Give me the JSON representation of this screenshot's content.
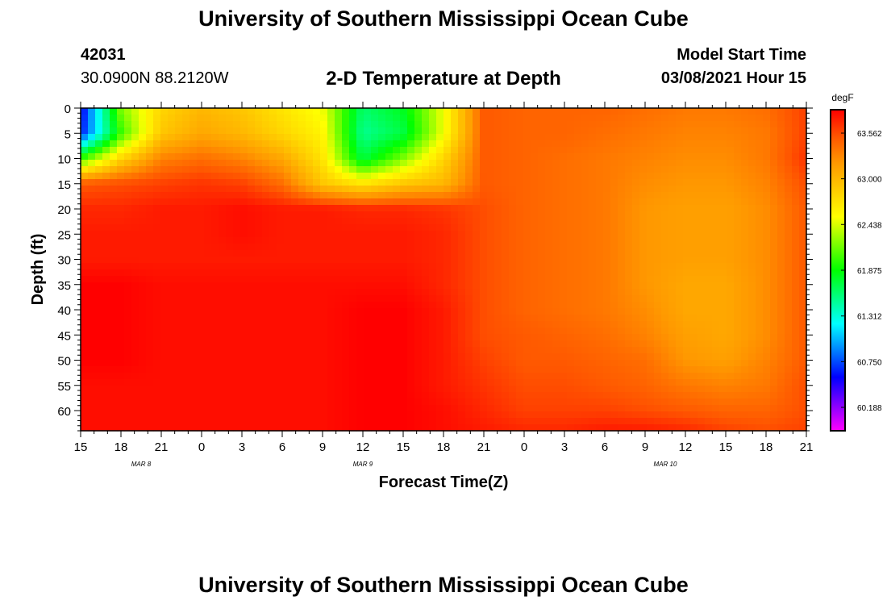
{
  "page": {
    "top_title": "University of Southern Mississippi Ocean Cube",
    "bottom_title": "University of Southern Mississippi Ocean Cube",
    "station_id": "42031",
    "location": "30.0900N 88.2120W",
    "plot_title": "2-D Temperature at Depth",
    "model_start_label": "Model Start Time",
    "model_start_value": "03/08/2021 Hour 15"
  },
  "chart_data": {
    "type": "heatmap",
    "title": "2-D Temperature at Depth",
    "xlabel": "Forecast Time(Z)",
    "ylabel": "Depth (ft)",
    "x_range_hours": [
      0,
      54
    ],
    "x_ticks": [
      {
        "h": 0,
        "label": "15"
      },
      {
        "h": 3,
        "label": "18"
      },
      {
        "h": 6,
        "label": "21"
      },
      {
        "h": 9,
        "label": "0"
      },
      {
        "h": 12,
        "label": "3"
      },
      {
        "h": 15,
        "label": "6"
      },
      {
        "h": 18,
        "label": "9"
      },
      {
        "h": 21,
        "label": "12"
      },
      {
        "h": 24,
        "label": "15"
      },
      {
        "h": 27,
        "label": "18"
      },
      {
        "h": 30,
        "label": "21"
      },
      {
        "h": 33,
        "label": "0"
      },
      {
        "h": 36,
        "label": "3"
      },
      {
        "h": 39,
        "label": "6"
      },
      {
        "h": 42,
        "label": "9"
      },
      {
        "h": 45,
        "label": "12"
      },
      {
        "h": 48,
        "label": "15"
      },
      {
        "h": 51,
        "label": "18"
      },
      {
        "h": 54,
        "label": "21"
      }
    ],
    "date_labels": [
      {
        "h": 4.5,
        "label": "MAR 8"
      },
      {
        "h": 21,
        "label": "MAR 9"
      },
      {
        "h": 43.5,
        "label": "MAR 10"
      }
    ],
    "y_range_ft": [
      0,
      64
    ],
    "y_ticks": [
      0,
      5,
      10,
      15,
      20,
      25,
      30,
      35,
      40,
      45,
      50,
      55,
      60
    ],
    "colorbar": {
      "unit": "degF",
      "min": 59.9,
      "max": 63.85,
      "tick_values": [
        60.188,
        60.75,
        61.312,
        61.875,
        62.438,
        63.0,
        63.562
      ],
      "tick_labels": [
        "60.188",
        "60.750",
        "61.312",
        "61.875",
        "62.438",
        "63.000",
        "63.562"
      ]
    },
    "grid": {
      "hours": [
        0,
        3,
        6,
        9,
        12,
        15,
        18,
        21,
        24,
        27,
        30,
        33,
        36,
        39,
        42,
        45,
        48,
        51,
        54
      ],
      "depths": [
        0,
        5,
        10,
        15,
        20,
        25,
        30,
        35,
        40,
        45,
        50,
        55,
        60,
        64
      ],
      "values": [
        [
          60.5,
          62.2,
          62.8,
          63.0,
          62.9,
          62.7,
          62.5,
          61.6,
          61.8,
          62.5,
          63.5,
          63.45,
          63.45,
          63.45,
          63.4,
          63.35,
          63.35,
          63.4,
          63.6
        ],
        [
          60.6,
          62.0,
          62.9,
          63.1,
          63.0,
          62.8,
          62.6,
          61.5,
          61.7,
          62.5,
          63.5,
          63.45,
          63.45,
          63.4,
          63.35,
          63.3,
          63.3,
          63.35,
          63.6
        ],
        [
          62.0,
          62.8,
          63.3,
          63.4,
          63.3,
          63.1,
          62.7,
          61.7,
          62.2,
          62.8,
          63.5,
          63.45,
          63.4,
          63.35,
          63.3,
          63.25,
          63.25,
          63.35,
          63.65
        ],
        [
          63.5,
          63.55,
          63.6,
          63.65,
          63.6,
          63.4,
          62.9,
          62.7,
          62.9,
          63.0,
          63.5,
          63.45,
          63.4,
          63.35,
          63.25,
          63.2,
          63.2,
          63.3,
          63.55
        ],
        [
          63.7,
          63.7,
          63.75,
          63.75,
          63.8,
          63.75,
          63.75,
          63.7,
          63.7,
          63.65,
          63.55,
          63.45,
          63.4,
          63.35,
          63.2,
          63.15,
          63.15,
          63.25,
          63.5
        ],
        [
          63.75,
          63.75,
          63.75,
          63.75,
          63.8,
          63.75,
          63.75,
          63.75,
          63.75,
          63.7,
          63.55,
          63.45,
          63.4,
          63.35,
          63.2,
          63.15,
          63.15,
          63.25,
          63.5
        ],
        [
          63.75,
          63.75,
          63.75,
          63.75,
          63.75,
          63.75,
          63.75,
          63.75,
          63.75,
          63.7,
          63.55,
          63.45,
          63.4,
          63.35,
          63.2,
          63.15,
          63.15,
          63.25,
          63.5
        ],
        [
          63.85,
          63.85,
          63.8,
          63.8,
          63.8,
          63.8,
          63.8,
          63.8,
          63.8,
          63.7,
          63.55,
          63.45,
          63.4,
          63.35,
          63.2,
          63.1,
          63.1,
          63.25,
          63.5
        ],
        [
          63.85,
          63.85,
          63.8,
          63.8,
          63.8,
          63.8,
          63.8,
          63.85,
          63.85,
          63.75,
          63.55,
          63.45,
          63.4,
          63.35,
          63.25,
          63.1,
          63.1,
          63.25,
          63.5
        ],
        [
          63.85,
          63.85,
          63.8,
          63.8,
          63.8,
          63.8,
          63.8,
          63.85,
          63.85,
          63.75,
          63.55,
          63.5,
          63.45,
          63.4,
          63.3,
          63.15,
          63.1,
          63.25,
          63.5
        ],
        [
          63.85,
          63.85,
          63.8,
          63.8,
          63.8,
          63.8,
          63.8,
          63.85,
          63.85,
          63.75,
          63.6,
          63.5,
          63.5,
          63.45,
          63.4,
          63.2,
          63.15,
          63.3,
          63.5
        ],
        [
          63.8,
          63.8,
          63.8,
          63.8,
          63.8,
          63.8,
          63.8,
          63.85,
          63.85,
          63.75,
          63.65,
          63.55,
          63.55,
          63.5,
          63.45,
          63.35,
          63.3,
          63.35,
          63.55
        ],
        [
          63.8,
          63.8,
          63.8,
          63.8,
          63.8,
          63.8,
          63.8,
          63.85,
          63.85,
          63.8,
          63.7,
          63.6,
          63.6,
          63.6,
          63.55,
          63.5,
          63.45,
          63.45,
          63.55
        ],
        [
          63.8,
          63.8,
          63.8,
          63.8,
          63.8,
          63.8,
          63.8,
          63.85,
          63.85,
          63.8,
          63.75,
          63.7,
          63.7,
          63.75,
          63.75,
          63.7,
          63.6,
          63.55,
          63.6
        ]
      ]
    }
  },
  "colors": {
    "axis": "#000000",
    "stops": [
      "#ff00ff",
      "#8000ff",
      "#0000ff",
      "#0080ff",
      "#00ffff",
      "#00ff80",
      "#00ff00",
      "#80ff00",
      "#ffff00",
      "#ffcc00",
      "#ff9900",
      "#ff5500",
      "#ff0000"
    ]
  }
}
